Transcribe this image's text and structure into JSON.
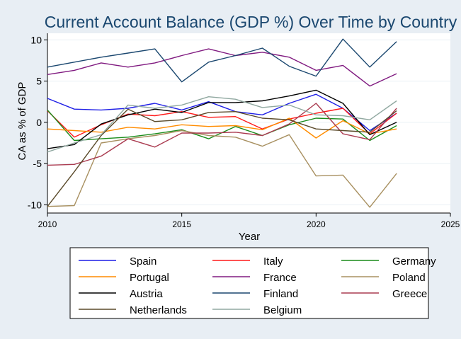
{
  "chart_data": {
    "type": "line",
    "title": "Current Account Balance (GDP %) Over Time by Country",
    "xlabel": "Year",
    "ylabel": "CA as % of GDP",
    "xlim": [
      2010,
      2025
    ],
    "ylim": [
      -11,
      10.8
    ],
    "xticks": [
      2010,
      2015,
      2020,
      2025
    ],
    "yticks": [
      -10,
      -5,
      0,
      5,
      10
    ],
    "grid": true,
    "legend": "bottom",
    "colors": {
      "background": "#e8eef4",
      "plot_background": "#ffffff",
      "title": "#1a476f",
      "grid": "#eaf0f5"
    },
    "x": [
      2010,
      2011,
      2012,
      2013,
      2014,
      2015,
      2016,
      2017,
      2018,
      2019,
      2020,
      2021,
      2022,
      2023
    ],
    "series": [
      {
        "name": "Spain",
        "color": "#1f1fe6",
        "values": [
          2.9,
          1.6,
          1.5,
          1.7,
          2.3,
          1.5,
          2.5,
          1.3,
          0.9,
          2.3,
          3.4,
          1.7,
          -1.0,
          1.1
        ]
      },
      {
        "name": "Italy",
        "color": "#ff1a1a",
        "values": [
          1.4,
          -1.8,
          -0.3,
          1.0,
          0.8,
          1.3,
          0.6,
          0.7,
          -0.8,
          0.4,
          1.1,
          1.7,
          -1.4,
          1.1
        ]
      },
      {
        "name": "Germany",
        "color": "#1a8c1a",
        "values": [
          1.5,
          -2.2,
          -2.0,
          -1.8,
          -1.4,
          -0.9,
          -2.0,
          -0.5,
          -1.6,
          -0.3,
          0.5,
          0.4,
          -2.2,
          -0.4
        ]
      },
      {
        "name": "Portugal",
        "color": "#ff8c00",
        "values": [
          -0.8,
          -1.0,
          -1.2,
          -0.6,
          -0.8,
          -0.3,
          -0.5,
          -0.4,
          -0.9,
          0.5,
          -1.9,
          0.2,
          -1.4,
          -0.8
        ]
      },
      {
        "name": "France",
        "color": "#801a80",
        "values": [
          5.8,
          6.3,
          7.2,
          6.7,
          7.2,
          8.1,
          8.9,
          8.1,
          8.5,
          7.9,
          6.3,
          6.9,
          4.4,
          5.9
        ]
      },
      {
        "name": "Poland",
        "color": "#a89060",
        "values": [
          -10.2,
          -10.1,
          -2.5,
          -2.0,
          -1.6,
          -1.0,
          -1.6,
          -1.8,
          -2.9,
          -1.5,
          -6.5,
          -6.4,
          -10.3,
          -6.2
        ]
      },
      {
        "name": "Austria",
        "color": "#000000",
        "values": [
          -3.2,
          -2.7,
          -0.2,
          0.9,
          1.6,
          1.2,
          2.4,
          2.4,
          2.6,
          3.2,
          3.9,
          2.3,
          -1.5,
          0.0
        ]
      },
      {
        "name": "Finland",
        "color": "#1a476f",
        "values": [
          6.7,
          7.3,
          7.9,
          8.4,
          8.9,
          4.9,
          7.3,
          8.1,
          9.0,
          6.8,
          5.6,
          10.1,
          6.7,
          9.8
        ]
      },
      {
        "name": "Greece",
        "color": "#aa3b50",
        "values": [
          -5.2,
          -5.1,
          -4.1,
          -2.0,
          -3.0,
          -1.3,
          -1.3,
          -1.2,
          -1.6,
          -0.2,
          2.3,
          -1.4,
          -2.1,
          1.7
        ]
      },
      {
        "name": "Netherlands",
        "color": "#5a4a2a",
        "values": [
          -10.2,
          -6.0,
          -1.6,
          1.6,
          0.1,
          0.3,
          1.2,
          1.3,
          0.5,
          0.3,
          -0.8,
          -1.0,
          -1.2,
          1.4
        ]
      },
      {
        "name": "Belgium",
        "color": "#90a8a0",
        "values": [
          -3.6,
          -2.5,
          -1.5,
          2.1,
          1.7,
          2.1,
          3.1,
          2.8,
          1.8,
          2.1,
          0.9,
          0.8,
          0.3,
          2.6
        ]
      }
    ]
  }
}
